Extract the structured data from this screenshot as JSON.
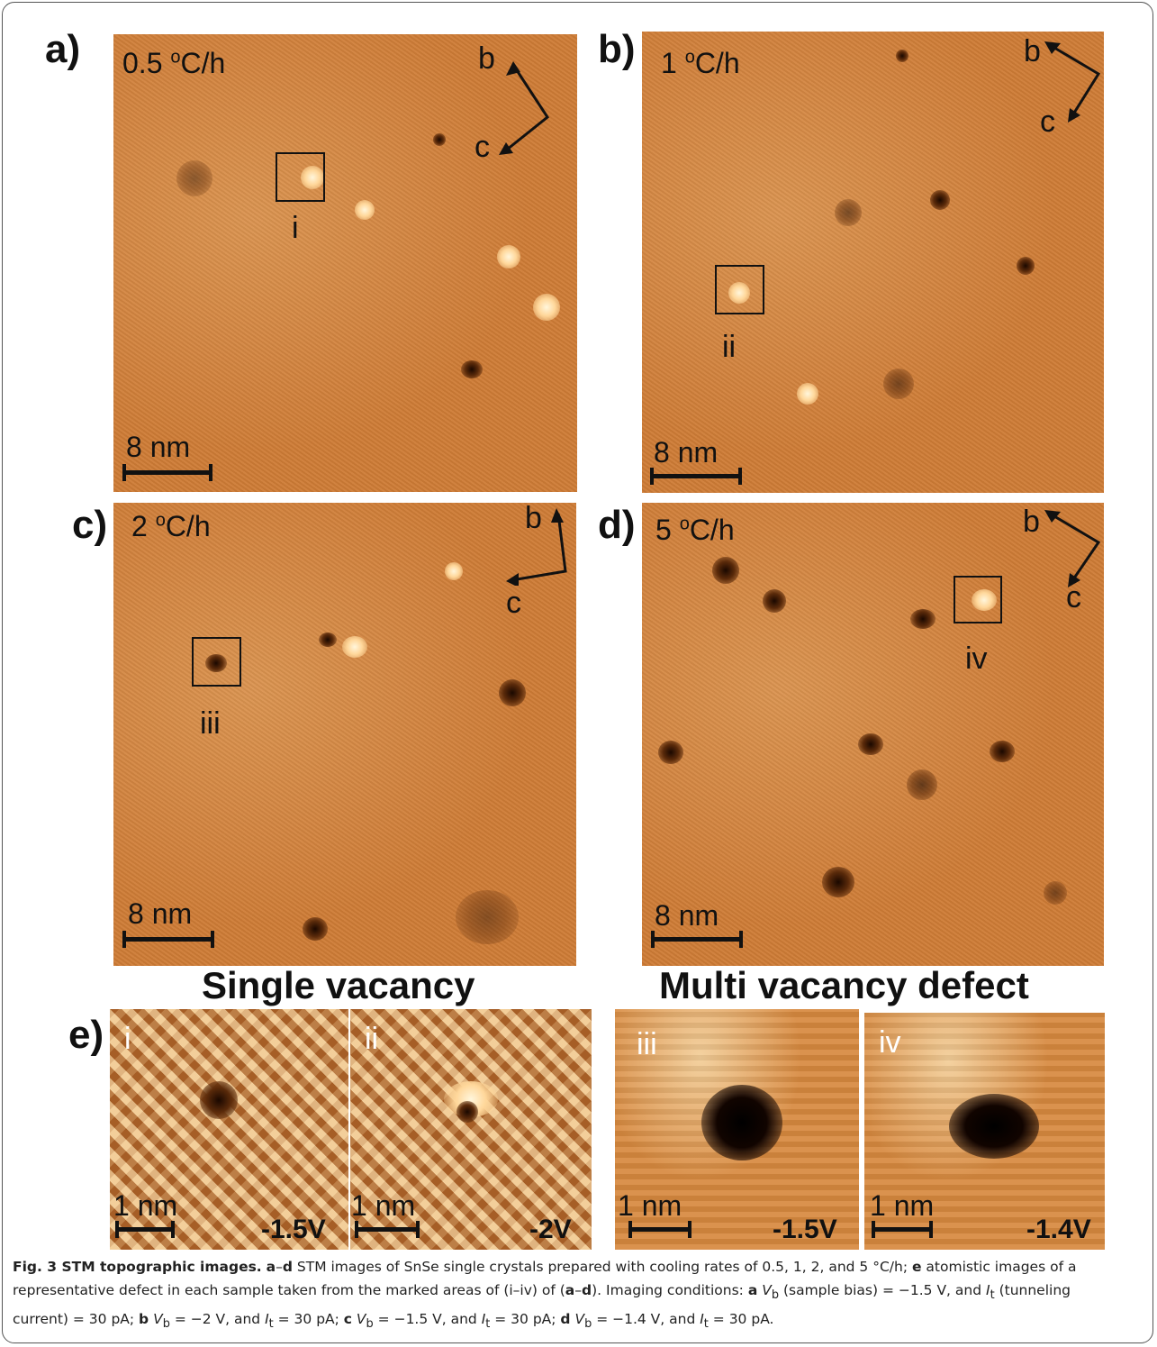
{
  "panels": {
    "a": {
      "letter": "a)",
      "rate_num": "0.5 ",
      "rate_sup": "o",
      "rate_unit": "C/h",
      "axis_b": "b",
      "axis_c": "c",
      "scale": "8 nm",
      "marker": "i"
    },
    "b": {
      "letter": "b)",
      "rate_num": "1 ",
      "rate_sup": "o",
      "rate_unit": "C/h",
      "axis_b": "b",
      "axis_c": "c",
      "scale": "8 nm",
      "marker": "ii"
    },
    "c": {
      "letter": "c)",
      "rate_num": "2 ",
      "rate_sup": "o",
      "rate_unit": "C/h",
      "axis_b": "b",
      "axis_c": "c",
      "scale": "8 nm",
      "marker": "iii"
    },
    "d": {
      "letter": "d)",
      "rate_num": "5 ",
      "rate_sup": "o",
      "rate_unit": "C/h",
      "axis_b": "b",
      "axis_c": "c",
      "scale": "8 nm",
      "marker": "iv"
    }
  },
  "section_e": {
    "letter": "e)",
    "heading_single": "Single vacancy",
    "heading_multi": "Multi vacancy defect",
    "zooms": [
      {
        "label": "i",
        "scale": "1 nm",
        "bias": "-1.5V"
      },
      {
        "label": "ii",
        "scale": "1 nm",
        "bias": "-2V"
      },
      {
        "label": "iii",
        "scale": "1 nm",
        "bias": "-1.5V"
      },
      {
        "label": "iv",
        "scale": "1 nm",
        "bias": "-1.4V"
      }
    ]
  },
  "caption": {
    "title": "Fig. 3 STM topographic images.",
    "l1_a": "a",
    "l1_dash": "–",
    "l1_d": "d",
    "l1_text": " STM images of SnSe single crystals prepared with cooling rates of 0.5, 1, 2, and 5 °C/h; ",
    "l1_e": "e",
    "l1_text2": " atomistic images of a",
    "l2_text": "representative defect in each sample taken from the marked areas of (i–iv) of (",
    "l2_a": "a",
    "l2_dash": "–",
    "l2_d": "d",
    "l2_text2": "). Imaging conditions: ",
    "l2_a2": "a",
    "l2_vb": " V",
    "l2_vb_sub": "b",
    "l2_text3": " (sample bias) = −1.5 V, and ",
    "l2_it": "I",
    "l2_it_sub": "t",
    "l2_text4": " (tunneling",
    "l3_text": "current) = 30 pA; ",
    "l3_b": "b",
    "l3_vb": " V",
    "l3_vb_sub": "b",
    "l3_text2": " = −2 V, and ",
    "l3_it": "I",
    "l3_it_sub": "t",
    "l3_text3": " = 30 pA; ",
    "l3_c": "c",
    "l3_vb2": " V",
    "l3_vb2_sub": "b",
    "l3_text4": " = −1.5 V, and ",
    "l3_it2": "I",
    "l3_it2_sub": "t",
    "l3_text5": " = 30 pA; ",
    "l3_d": "d",
    "l3_vb3": " V",
    "l3_vb3_sub": "b",
    "l3_text6": " = −1.4 V, and ",
    "l3_it3": "I",
    "l3_it3_sub": "t",
    "l3_text7": " = 30 pA."
  }
}
